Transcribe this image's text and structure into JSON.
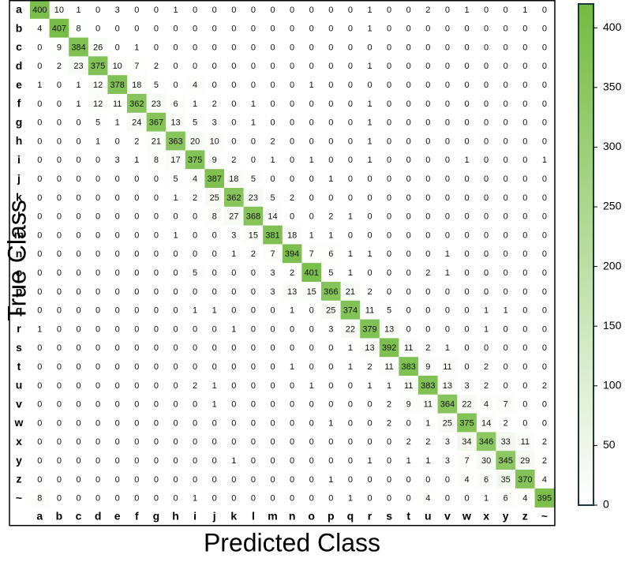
{
  "chart_data": {
    "type": "heatmap",
    "xlabel": "Predicted Class",
    "ylabel": "True Class",
    "x_categories": [
      "a",
      "b",
      "c",
      "d",
      "e",
      "f",
      "g",
      "h",
      "i",
      "j",
      "k",
      "l",
      "m",
      "n",
      "o",
      "p",
      "q",
      "r",
      "s",
      "t",
      "u",
      "v",
      "w",
      "x",
      "y",
      "z",
      "~"
    ],
    "y_categories": [
      "a",
      "b",
      "c",
      "d",
      "e",
      "f",
      "g",
      "h",
      "i",
      "j",
      "k",
      "l",
      "m",
      "n",
      "o",
      "p",
      "q",
      "r",
      "s",
      "t",
      "u",
      "v",
      "w",
      "x",
      "y",
      "z",
      "~"
    ],
    "values": [
      [
        400,
        10,
        1,
        0,
        3,
        0,
        0,
        1,
        0,
        0,
        0,
        0,
        0,
        0,
        0,
        0,
        0,
        1,
        0,
        0,
        2,
        0,
        1,
        0,
        0,
        1,
        0
      ],
      [
        4,
        407,
        8,
        0,
        0,
        0,
        0,
        0,
        0,
        0,
        0,
        0,
        0,
        0,
        0,
        0,
        0,
        1,
        0,
        0,
        0,
        0,
        0,
        0,
        0,
        0,
        0
      ],
      [
        0,
        9,
        384,
        26,
        0,
        1,
        0,
        0,
        0,
        0,
        0,
        0,
        0,
        0,
        0,
        0,
        0,
        0,
        0,
        0,
        0,
        0,
        0,
        0,
        0,
        0,
        0
      ],
      [
        0,
        2,
        23,
        375,
        10,
        7,
        2,
        0,
        0,
        0,
        0,
        0,
        0,
        0,
        0,
        0,
        0,
        1,
        0,
        0,
        0,
        0,
        0,
        0,
        0,
        0,
        0
      ],
      [
        1,
        0,
        1,
        12,
        378,
        18,
        5,
        0,
        4,
        0,
        0,
        0,
        0,
        0,
        1,
        0,
        0,
        0,
        0,
        0,
        0,
        0,
        0,
        0,
        0,
        0,
        0
      ],
      [
        0,
        0,
        1,
        12,
        11,
        362,
        23,
        6,
        1,
        2,
        0,
        1,
        0,
        0,
        0,
        0,
        0,
        1,
        0,
        0,
        0,
        0,
        0,
        0,
        0,
        0,
        0
      ],
      [
        0,
        0,
        0,
        5,
        1,
        24,
        367,
        13,
        5,
        3,
        0,
        1,
        0,
        0,
        0,
        0,
        0,
        1,
        0,
        0,
        0,
        0,
        0,
        0,
        0,
        0,
        0
      ],
      [
        0,
        0,
        0,
        1,
        0,
        2,
        21,
        363,
        20,
        10,
        0,
        0,
        2,
        0,
        0,
        0,
        0,
        1,
        0,
        0,
        0,
        0,
        0,
        0,
        0,
        0,
        0
      ],
      [
        0,
        0,
        0,
        0,
        3,
        1,
        8,
        17,
        375,
        9,
        2,
        0,
        1,
        0,
        1,
        0,
        0,
        1,
        0,
        0,
        0,
        0,
        1,
        0,
        0,
        0,
        1
      ],
      [
        0,
        0,
        0,
        0,
        0,
        0,
        0,
        5,
        4,
        387,
        18,
        5,
        0,
        0,
        0,
        1,
        0,
        0,
        0,
        0,
        0,
        0,
        0,
        0,
        0,
        0,
        0
      ],
      [
        0,
        0,
        0,
        0,
        0,
        0,
        0,
        1,
        2,
        25,
        362,
        23,
        5,
        2,
        0,
        0,
        0,
        0,
        0,
        0,
        0,
        0,
        0,
        0,
        0,
        0,
        0
      ],
      [
        0,
        0,
        0,
        0,
        0,
        0,
        0,
        0,
        0,
        8,
        27,
        368,
        14,
        0,
        0,
        2,
        1,
        0,
        0,
        0,
        0,
        0,
        0,
        0,
        0,
        0,
        0
      ],
      [
        0,
        0,
        0,
        0,
        0,
        0,
        0,
        1,
        0,
        0,
        3,
        15,
        381,
        18,
        1,
        1,
        0,
        0,
        0,
        0,
        0,
        0,
        0,
        0,
        0,
        0,
        0
      ],
      [
        0,
        0,
        0,
        0,
        0,
        0,
        0,
        0,
        0,
        0,
        1,
        2,
        7,
        394,
        7,
        6,
        1,
        1,
        0,
        0,
        0,
        1,
        0,
        0,
        0,
        0,
        0
      ],
      [
        0,
        0,
        0,
        0,
        0,
        0,
        0,
        0,
        5,
        0,
        0,
        0,
        3,
        2,
        401,
        5,
        1,
        0,
        0,
        0,
        2,
        1,
        0,
        0,
        0,
        0,
        0
      ],
      [
        0,
        0,
        0,
        0,
        0,
        0,
        0,
        0,
        0,
        0,
        0,
        0,
        3,
        13,
        15,
        366,
        21,
        2,
        0,
        0,
        0,
        0,
        0,
        0,
        0,
        0,
        0
      ],
      [
        0,
        0,
        0,
        0,
        0,
        0,
        0,
        0,
        1,
        1,
        0,
        0,
        0,
        1,
        0,
        25,
        374,
        11,
        5,
        0,
        0,
        0,
        0,
        1,
        1,
        0,
        0
      ],
      [
        1,
        0,
        0,
        0,
        0,
        0,
        0,
        0,
        0,
        0,
        1,
        0,
        0,
        0,
        0,
        3,
        22,
        379,
        13,
        0,
        0,
        0,
        0,
        1,
        0,
        0,
        0
      ],
      [
        0,
        0,
        0,
        0,
        0,
        0,
        0,
        0,
        0,
        0,
        0,
        0,
        0,
        0,
        0,
        0,
        1,
        13,
        392,
        11,
        2,
        1,
        0,
        0,
        0,
        0,
        0
      ],
      [
        0,
        0,
        0,
        0,
        0,
        0,
        0,
        0,
        0,
        0,
        0,
        0,
        0,
        1,
        0,
        0,
        1,
        2,
        11,
        383,
        9,
        11,
        0,
        2,
        0,
        0,
        0
      ],
      [
        0,
        0,
        0,
        0,
        0,
        0,
        0,
        0,
        2,
        1,
        0,
        0,
        0,
        0,
        1,
        0,
        0,
        1,
        1,
        11,
        383,
        13,
        3,
        2,
        0,
        0,
        2
      ],
      [
        0,
        0,
        0,
        0,
        0,
        0,
        0,
        0,
        0,
        1,
        0,
        0,
        0,
        0,
        0,
        0,
        0,
        0,
        2,
        9,
        11,
        364,
        22,
        4,
        7,
        0,
        0
      ],
      [
        0,
        0,
        0,
        0,
        0,
        0,
        0,
        0,
        0,
        0,
        0,
        0,
        0,
        0,
        0,
        1,
        0,
        0,
        2,
        0,
        1,
        25,
        375,
        14,
        2,
        0,
        0
      ],
      [
        0,
        0,
        0,
        0,
        0,
        0,
        0,
        0,
        0,
        0,
        0,
        0,
        0,
        0,
        0,
        0,
        0,
        0,
        0,
        2,
        2,
        3,
        34,
        346,
        33,
        11,
        2
      ],
      [
        0,
        0,
        0,
        0,
        0,
        0,
        0,
        0,
        0,
        0,
        1,
        0,
        0,
        0,
        0,
        0,
        0,
        1,
        0,
        1,
        1,
        3,
        7,
        30,
        345,
        29,
        2
      ],
      [
        0,
        0,
        0,
        0,
        0,
        0,
        0,
        0,
        0,
        0,
        0,
        0,
        0,
        0,
        0,
        1,
        0,
        0,
        0,
        0,
        0,
        0,
        4,
        6,
        35,
        370,
        4
      ],
      [
        8,
        0,
        0,
        0,
        0,
        0,
        0,
        0,
        1,
        0,
        0,
        0,
        0,
        0,
        0,
        0,
        1,
        0,
        0,
        0,
        4,
        0,
        0,
        1,
        6,
        4,
        395
      ]
    ],
    "clim": [
      0,
      420
    ],
    "cticks": [
      0,
      50,
      100,
      150,
      200,
      250,
      300,
      350,
      400
    ],
    "colors": [
      "#ffffff",
      "#74bb42"
    ]
  }
}
